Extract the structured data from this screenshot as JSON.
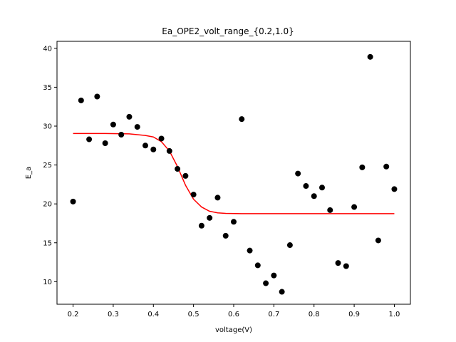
{
  "chart_data": {
    "type": "scatter",
    "title": "Ea_OPE2_volt_range_{0.2,1.0}",
    "xlabel": "voltage(V)",
    "ylabel": "E_a",
    "xlim": [
      0.16,
      1.04
    ],
    "ylim": [
      7.1,
      40.9
    ],
    "xticks": [
      0.2,
      0.3,
      0.4,
      0.5,
      0.6,
      0.7,
      0.8,
      0.9,
      1.0
    ],
    "xtick_labels": [
      "0.2",
      "0.3",
      "0.4",
      "0.5",
      "0.6",
      "0.7",
      "0.8",
      "0.9",
      "1.0"
    ],
    "yticks": [
      10,
      15,
      20,
      25,
      30,
      35,
      40
    ],
    "ytick_labels": [
      "10",
      "15",
      "20",
      "25",
      "30",
      "35",
      "40"
    ],
    "grid": false,
    "series": [
      {
        "kind": "scatter",
        "color": "#000000",
        "points": [
          [
            0.2,
            20.3
          ],
          [
            0.22,
            33.3
          ],
          [
            0.24,
            28.3
          ],
          [
            0.26,
            33.8
          ],
          [
            0.28,
            27.8
          ],
          [
            0.3,
            30.2
          ],
          [
            0.32,
            28.9
          ],
          [
            0.34,
            31.2
          ],
          [
            0.36,
            29.9
          ],
          [
            0.38,
            27.5
          ],
          [
            0.4,
            27.0
          ],
          [
            0.42,
            28.4
          ],
          [
            0.44,
            26.8
          ],
          [
            0.46,
            24.5
          ],
          [
            0.48,
            23.6
          ],
          [
            0.5,
            21.2
          ],
          [
            0.52,
            17.2
          ],
          [
            0.54,
            18.2
          ],
          [
            0.56,
            20.8
          ],
          [
            0.58,
            15.9
          ],
          [
            0.6,
            17.7
          ],
          [
            0.62,
            30.9
          ],
          [
            0.64,
            14.0
          ],
          [
            0.66,
            12.1
          ],
          [
            0.68,
            9.8
          ],
          [
            0.7,
            10.8
          ],
          [
            0.72,
            8.7
          ],
          [
            0.74,
            14.7
          ],
          [
            0.76,
            23.9
          ],
          [
            0.78,
            22.3
          ],
          [
            0.8,
            21.0
          ],
          [
            0.82,
            22.1
          ],
          [
            0.84,
            19.2
          ],
          [
            0.86,
            12.4
          ],
          [
            0.88,
            12.0
          ],
          [
            0.9,
            19.6
          ],
          [
            0.92,
            24.7
          ],
          [
            0.94,
            38.9
          ],
          [
            0.96,
            15.3
          ],
          [
            0.98,
            24.8
          ],
          [
            1.0,
            21.9
          ]
        ]
      },
      {
        "kind": "line",
        "color": "#ff0000",
        "points": [
          [
            0.2,
            29.05
          ],
          [
            0.28,
            29.05
          ],
          [
            0.34,
            29.0
          ],
          [
            0.38,
            28.8
          ],
          [
            0.4,
            28.6
          ],
          [
            0.42,
            28.0
          ],
          [
            0.44,
            26.8
          ],
          [
            0.46,
            24.8
          ],
          [
            0.48,
            22.4
          ],
          [
            0.5,
            20.6
          ],
          [
            0.52,
            19.6
          ],
          [
            0.54,
            19.05
          ],
          [
            0.56,
            18.85
          ],
          [
            0.58,
            18.78
          ],
          [
            0.62,
            18.75
          ],
          [
            0.7,
            18.75
          ],
          [
            1.0,
            18.75
          ]
        ]
      }
    ]
  }
}
